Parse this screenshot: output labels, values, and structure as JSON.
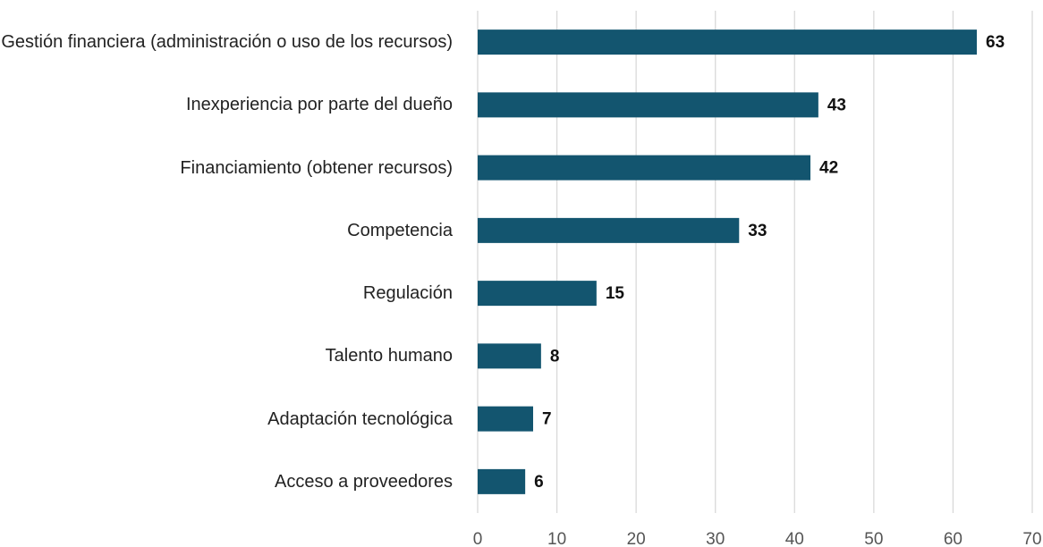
{
  "chart_data": {
    "type": "barh",
    "categories": [
      "Gestión financiera (administración o uso de los recursos)",
      "Inexperiencia por parte del dueño",
      "Financiamiento (obtener recursos)",
      "Competencia",
      "Regulación",
      "Talento humano",
      "Adaptación tecnológica",
      "Acceso a proveedores"
    ],
    "values": [
      63,
      43,
      42,
      33,
      15,
      8,
      7,
      6
    ],
    "color": "#13556f",
    "xlim": [
      0,
      70
    ],
    "xticks": [
      0,
      10,
      20,
      30,
      40,
      50,
      60,
      70
    ],
    "grid": true
  }
}
